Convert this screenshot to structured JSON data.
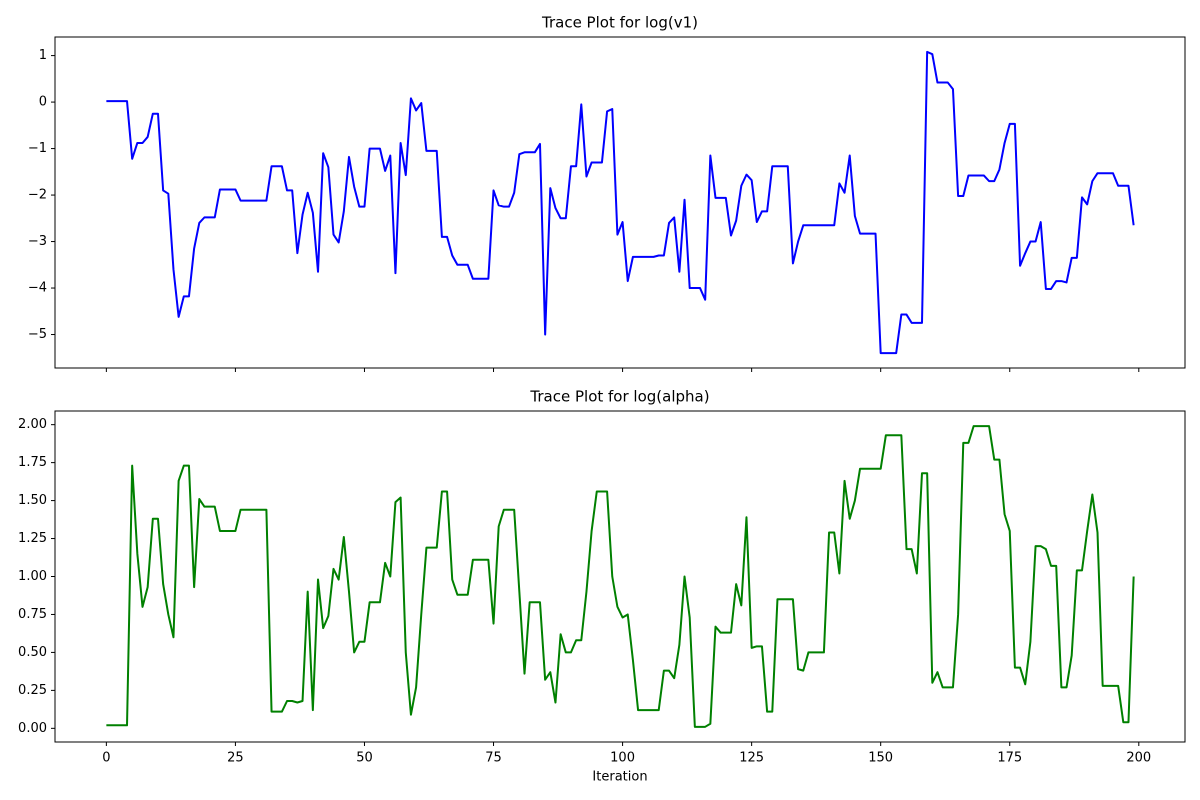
{
  "chart_data": [
    {
      "type": "line",
      "title": "Trace Plot for log(v1)",
      "color": "#0000ff",
      "x": [
        0,
        1,
        2,
        3,
        4,
        5,
        6,
        7,
        8,
        9,
        10,
        11,
        12,
        13,
        14,
        15,
        16,
        17,
        18,
        19,
        20,
        21,
        22,
        23,
        24,
        25,
        26,
        27,
        28,
        29,
        30,
        31,
        32,
        33,
        34,
        35,
        36,
        37,
        38,
        39,
        40,
        41,
        42,
        43,
        44,
        45,
        46,
        47,
        48,
        49,
        50,
        51,
        52,
        53,
        54,
        55,
        56,
        57,
        58,
        59,
        60,
        61,
        62,
        63,
        64,
        65,
        66,
        67,
        68,
        69,
        70,
        71,
        72,
        73,
        74,
        75,
        76,
        77,
        78,
        79,
        80,
        81,
        82,
        83,
        84,
        85,
        86,
        87,
        88,
        89,
        90,
        91,
        92,
        93,
        94,
        95,
        96,
        97,
        98,
        99,
        100,
        101,
        102,
        103,
        104,
        105,
        106,
        107,
        108,
        109,
        110,
        111,
        112,
        113,
        114,
        115,
        116,
        117,
        118,
        119,
        120,
        121,
        122,
        123,
        124,
        125,
        126,
        127,
        128,
        129,
        130,
        131,
        132,
        133,
        134,
        135,
        136,
        137,
        138,
        139,
        140,
        141,
        142,
        143,
        144,
        145,
        146,
        147,
        148,
        149,
        150,
        151,
        152,
        153,
        154,
        155,
        156,
        157,
        158,
        159,
        160,
        161,
        162,
        163,
        164,
        165,
        166,
        167,
        168,
        169,
        170,
        171,
        172,
        173,
        174,
        175,
        176,
        177,
        178,
        179,
        180,
        181,
        182,
        183,
        184,
        185,
        186,
        187,
        188,
        189,
        190,
        191,
        192,
        193,
        194,
        195,
        196,
        197,
        198,
        199
      ],
      "values": [
        0.02,
        0.02,
        0.02,
        0.02,
        0.02,
        -1.22,
        -0.88,
        -0.88,
        -0.75,
        -0.25,
        -0.25,
        -1.9,
        -1.97,
        -3.6,
        -4.62,
        -4.18,
        -4.18,
        -3.15,
        -2.6,
        -2.48,
        -2.48,
        -2.48,
        -1.88,
        -1.88,
        -1.88,
        -1.88,
        -2.12,
        -2.12,
        -2.12,
        -2.12,
        -2.12,
        -2.12,
        -1.38,
        -1.38,
        -1.38,
        -1.9,
        -1.9,
        -3.25,
        -2.42,
        -1.95,
        -2.38,
        -3.65,
        -1.1,
        -1.4,
        -2.85,
        -3.02,
        -2.35,
        -1.18,
        -1.82,
        -2.25,
        -2.25,
        -1.0,
        -1.0,
        -1.0,
        -1.48,
        -1.15,
        -3.68,
        -0.88,
        -1.57,
        0.08,
        -0.18,
        -0.02,
        -1.05,
        -1.05,
        -1.05,
        -2.9,
        -2.9,
        -3.3,
        -3.5,
        -3.5,
        -3.5,
        -3.8,
        -3.8,
        -3.8,
        -3.8,
        -1.9,
        -2.22,
        -2.25,
        -2.25,
        -1.95,
        -1.12,
        -1.08,
        -1.08,
        -1.08,
        -0.9,
        -5.0,
        -1.85,
        -2.28,
        -2.5,
        -2.5,
        -1.38,
        -1.38,
        -0.05,
        -1.6,
        -1.3,
        -1.3,
        -1.3,
        -0.2,
        -0.15,
        -2.85,
        -2.58,
        -3.85,
        -3.33,
        -3.33,
        -3.33,
        -3.33,
        -3.33,
        -3.3,
        -3.3,
        -2.6,
        -2.48,
        -3.65,
        -2.1,
        -4.0,
        -4.0,
        -4.0,
        -4.25,
        -1.15,
        -2.06,
        -2.06,
        -2.06,
        -2.87,
        -2.55,
        -1.8,
        -1.56,
        -1.68,
        -2.58,
        -2.35,
        -2.35,
        -1.38,
        -1.38,
        -1.38,
        -1.38,
        -3.47,
        -3.0,
        -2.65,
        -2.65,
        -2.65,
        -2.65,
        -2.65,
        -2.65,
        -2.65,
        -1.75,
        -1.95,
        -1.15,
        -2.45,
        -2.83,
        -2.83,
        -2.83,
        -2.83,
        -5.4,
        -5.4,
        -5.4,
        -5.4,
        -4.57,
        -4.57,
        -4.75,
        -4.75,
        -4.75,
        1.08,
        1.03,
        0.42,
        0.42,
        0.42,
        0.28,
        -2.02,
        -2.02,
        -1.58,
        -1.58,
        -1.58,
        -1.58,
        -1.7,
        -1.7,
        -1.45,
        -0.88,
        -0.47,
        -0.47,
        -3.52,
        -3.25,
        -3.0,
        -3.0,
        -2.58,
        -4.02,
        -4.02,
        -3.85,
        -3.85,
        -3.88,
        -3.35,
        -3.35,
        -2.05,
        -2.2,
        -1.7,
        -1.53,
        -1.53,
        -1.53,
        -1.53,
        -1.8,
        -1.8,
        -1.8,
        -2.65
      ],
      "xlim": [
        -9.95,
        208.95
      ],
      "xticks": [
        0,
        25,
        50,
        75,
        100,
        125,
        150,
        175,
        200
      ],
      "ylim": [
        -5.72,
        1.4
      ],
      "yticks": [
        {
          "value": -5,
          "label": "−5"
        },
        {
          "value": -4,
          "label": "−4"
        },
        {
          "value": -3,
          "label": "−3"
        },
        {
          "value": -2,
          "label": "−2"
        },
        {
          "value": -1,
          "label": "−1"
        },
        0,
        1
      ]
    },
    {
      "type": "line",
      "title": "Trace Plot for log(alpha)",
      "xlabel": "Iteration",
      "color": "#008000",
      "x": [
        0,
        1,
        2,
        3,
        4,
        5,
        6,
        7,
        8,
        9,
        10,
        11,
        12,
        13,
        14,
        15,
        16,
        17,
        18,
        19,
        20,
        21,
        22,
        23,
        24,
        25,
        26,
        27,
        28,
        29,
        30,
        31,
        32,
        33,
        34,
        35,
        36,
        37,
        38,
        39,
        40,
        41,
        42,
        43,
        44,
        45,
        46,
        47,
        48,
        49,
        50,
        51,
        52,
        53,
        54,
        55,
        56,
        57,
        58,
        59,
        60,
        61,
        62,
        63,
        64,
        65,
        66,
        67,
        68,
        69,
        70,
        71,
        72,
        73,
        74,
        75,
        76,
        77,
        78,
        79,
        80,
        81,
        82,
        83,
        84,
        85,
        86,
        87,
        88,
        89,
        90,
        91,
        92,
        93,
        94,
        95,
        96,
        97,
        98,
        99,
        100,
        101,
        102,
        103,
        104,
        105,
        106,
        107,
        108,
        109,
        110,
        111,
        112,
        113,
        114,
        115,
        116,
        117,
        118,
        119,
        120,
        121,
        122,
        123,
        124,
        125,
        126,
        127,
        128,
        129,
        130,
        131,
        132,
        133,
        134,
        135,
        136,
        137,
        138,
        139,
        140,
        141,
        142,
        143,
        144,
        145,
        146,
        147,
        148,
        149,
        150,
        151,
        152,
        153,
        154,
        155,
        156,
        157,
        158,
        159,
        160,
        161,
        162,
        163,
        164,
        165,
        166,
        167,
        168,
        169,
        170,
        171,
        172,
        173,
        174,
        175,
        176,
        177,
        178,
        179,
        180,
        181,
        182,
        183,
        184,
        185,
        186,
        187,
        188,
        189,
        190,
        191,
        192,
        193,
        194,
        195,
        196,
        197,
        198,
        199
      ],
      "values": [
        0.02,
        0.02,
        0.02,
        0.02,
        0.02,
        1.73,
        1.15,
        0.8,
        0.93,
        1.38,
        1.38,
        0.95,
        0.75,
        0.6,
        1.63,
        1.73,
        1.73,
        0.93,
        1.51,
        1.46,
        1.46,
        1.46,
        1.3,
        1.3,
        1.3,
        1.3,
        1.44,
        1.44,
        1.44,
        1.44,
        1.44,
        1.44,
        0.11,
        0.11,
        0.11,
        0.18,
        0.18,
        0.17,
        0.18,
        0.9,
        0.12,
        0.98,
        0.66,
        0.74,
        1.05,
        0.98,
        1.26,
        0.9,
        0.5,
        0.57,
        0.57,
        0.83,
        0.83,
        0.83,
        1.09,
        1.0,
        1.49,
        1.52,
        0.5,
        0.09,
        0.27,
        0.75,
        1.19,
        1.19,
        1.19,
        1.56,
        1.56,
        0.98,
        0.88,
        0.88,
        0.88,
        1.11,
        1.11,
        1.11,
        1.11,
        0.69,
        1.33,
        1.44,
        1.44,
        1.44,
        0.9,
        0.36,
        0.83,
        0.83,
        0.83,
        0.32,
        0.37,
        0.17,
        0.62,
        0.5,
        0.5,
        0.58,
        0.58,
        0.9,
        1.3,
        1.56,
        1.56,
        1.56,
        1.0,
        0.8,
        0.73,
        0.75,
        0.45,
        0.12,
        0.12,
        0.12,
        0.12,
        0.12,
        0.38,
        0.38,
        0.33,
        0.55,
        1.0,
        0.73,
        0.01,
        0.01,
        0.01,
        0.03,
        0.67,
        0.63,
        0.63,
        0.63,
        0.95,
        0.81,
        1.39,
        0.53,
        0.54,
        0.54,
        0.11,
        0.11,
        0.85,
        0.85,
        0.85,
        0.85,
        0.39,
        0.38,
        0.5,
        0.5,
        0.5,
        0.5,
        1.29,
        1.29,
        1.02,
        1.63,
        1.38,
        1.5,
        1.71,
        1.71,
        1.71,
        1.71,
        1.71,
        1.93,
        1.93,
        1.93,
        1.93,
        1.18,
        1.18,
        1.02,
        1.68,
        1.68,
        0.3,
        0.37,
        0.27,
        0.27,
        0.27,
        0.75,
        1.88,
        1.88,
        1.99,
        1.99,
        1.99,
        1.99,
        1.77,
        1.77,
        1.41,
        1.3,
        0.4,
        0.4,
        0.29,
        0.57,
        1.2,
        1.2,
        1.18,
        1.07,
        1.07,
        0.27,
        0.27,
        0.48,
        1.04,
        1.04,
        1.3,
        1.54,
        1.29,
        0.28,
        0.28,
        0.28,
        0.28,
        0.04,
        0.04,
        1.0
      ],
      "xlim": [
        -9.95,
        208.95
      ],
      "xticks": [
        0,
        25,
        50,
        75,
        100,
        125,
        150,
        175,
        200
      ],
      "ylim": [
        -0.09,
        2.09
      ],
      "yticks": [
        {
          "value": 0,
          "label": "0.00"
        },
        {
          "value": 0.25,
          "label": "0.25"
        },
        {
          "value": 0.5,
          "label": "0.50"
        },
        {
          "value": 0.75,
          "label": "0.75"
        },
        {
          "value": 1,
          "label": "1.00"
        },
        {
          "value": 1.25,
          "label": "1.25"
        },
        {
          "value": 1.5,
          "label": "1.50"
        },
        {
          "value": 1.75,
          "label": "1.75"
        },
        {
          "value": 2,
          "label": "2.00"
        }
      ]
    }
  ]
}
